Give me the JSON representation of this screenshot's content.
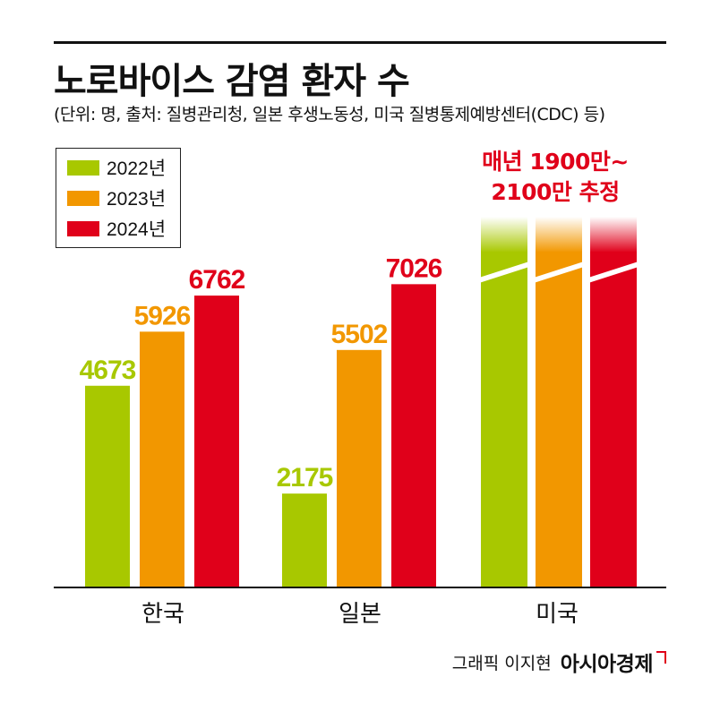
{
  "title": "노로바이스 감염 환자 수",
  "subtitle": "(단위: 명, 출처: 질병관리청, 일본 후생노동성, 미국 질병통제예방센터(CDC) 등)",
  "colors": {
    "y2022": "#a8c800",
    "y2023": "#f29700",
    "y2024": "#e0001a"
  },
  "us_note": {
    "line1": "매년 1900만~",
    "line2": "2100만 추정"
  },
  "credit": {
    "text": "그래픽 이지현",
    "brand": "아시아경제"
  },
  "chart_data": {
    "type": "bar",
    "title": "노로바이스 감염 환자 수",
    "unit": "명",
    "categories": [
      "한국",
      "일본",
      "미국"
    ],
    "series": [
      {
        "name": "2022년",
        "values": [
          4673,
          2175,
          null
        ]
      },
      {
        "name": "2023년",
        "values": [
          5926,
          5502,
          null
        ]
      },
      {
        "name": "2024년",
        "values": [
          6762,
          7026,
          null
        ]
      }
    ],
    "value_labels": [
      [
        "4673",
        "2175",
        ""
      ],
      [
        "5926",
        "5502",
        ""
      ],
      [
        "6762",
        "7026",
        ""
      ]
    ],
    "annotations": [
      "매년 1900만~ 2100만 추정"
    ],
    "ylim": [
      0,
      10000
    ],
    "grid": false,
    "legend": "top-left"
  }
}
